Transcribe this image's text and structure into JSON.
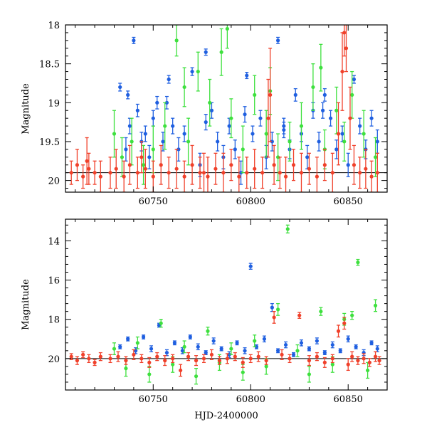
{
  "colors": {
    "blue": "#1f5fe0",
    "green": "#3ee03e",
    "red": "#f0402a",
    "axis": "#000000",
    "reference_line": "#000000"
  },
  "chart_data": [
    {
      "type": "scatter",
      "title": "",
      "xlabel": "",
      "ylabel": "Magnitude",
      "xlim": [
        60705,
        60870
      ],
      "ylim": [
        20.15,
        18.0
      ],
      "y_inverted": true,
      "grid": false,
      "legend": "none",
      "xticks": [
        60750,
        60800,
        60850
      ],
      "yticks": [
        18,
        18.5,
        19,
        19.5,
        20
      ],
      "ytick_labels": [
        "18",
        "18.5",
        "19",
        "19.5",
        "20"
      ],
      "reference_line_y": 19.9,
      "series": [
        {
          "color": "blue",
          "x": [
            60733,
            60736,
            60738,
            60740,
            60742,
            60744,
            60746,
            60748,
            60750,
            60752,
            60755,
            60758,
            60760,
            60763,
            60766,
            60770,
            60774,
            60777,
            60780,
            60783,
            60786,
            60789,
            60792,
            60795,
            60798,
            60801,
            60805,
            60808,
            60811,
            60814,
            60817,
            60820,
            60823,
            60826,
            60829,
            60832,
            60835,
            60838,
            60841,
            60844,
            60847,
            60850,
            60853,
            60856,
            60859,
            60862,
            60865,
            60737,
            60757,
            60777,
            60797,
            60817,
            60837
          ],
          "y": [
            18.8,
            19.6,
            19.3,
            18.2,
            19.1,
            19.5,
            19.4,
            19.7,
            19.2,
            19.0,
            19.5,
            18.7,
            19.3,
            19.6,
            19.4,
            18.6,
            19.8,
            18.35,
            19.1,
            19.5,
            19.7,
            19.3,
            19.6,
            19.9,
            18.65,
            19.4,
            19.2,
            19.7,
            19.5,
            18.2,
            19.3,
            19.6,
            18.9,
            19.4,
            19.7,
            19.1,
            19.5,
            18.9,
            19.2,
            19.6,
            19.4,
            19.8,
            18.7,
            19.3,
            19.6,
            19.2,
            19.5,
            18.9,
            19.0,
            19.25,
            19.15,
            19.35,
            19.1
          ],
          "yerr": [
            0.05,
            0.15,
            0.1,
            0.04,
            0.08,
            0.12,
            0.1,
            0.15,
            0.1,
            0.08,
            0.12,
            0.05,
            0.1,
            0.15,
            0.1,
            0.05,
            0.15,
            0.04,
            0.1,
            0.12,
            0.15,
            0.1,
            0.12,
            0.15,
            0.04,
            0.1,
            0.1,
            0.15,
            0.12,
            0.04,
            0.1,
            0.12,
            0.08,
            0.1,
            0.15,
            0.1,
            0.12,
            0.08,
            0.1,
            0.12,
            0.1,
            0.15,
            0.05,
            0.1,
            0.12,
            0.1,
            0.15,
            0.05,
            0.08,
            0.1,
            0.1,
            0.1,
            0.1
          ]
        },
        {
          "color": "green",
          "x": [
            60730,
            60734,
            60739,
            60745,
            60750,
            60756,
            60762,
            60768,
            60773,
            60779,
            60785,
            60790,
            60796,
            60802,
            60808,
            60814,
            60820,
            60826,
            60832,
            60838,
            60844,
            60848,
            60852,
            60858,
            60864,
            60766,
            60788,
            60810,
            60836
          ],
          "y": [
            19.4,
            19.7,
            19.5,
            19.8,
            19.6,
            19.3,
            18.2,
            19.5,
            18.6,
            19.0,
            18.35,
            19.2,
            19.6,
            18.9,
            19.4,
            19.7,
            19.5,
            19.3,
            18.8,
            19.6,
            19.1,
            19.5,
            18.9,
            19.4,
            19.7,
            18.8,
            18.05,
            18.85,
            18.55
          ],
          "yerr": [
            0.3,
            0.25,
            0.3,
            0.25,
            0.3,
            0.3,
            0.2,
            0.3,
            0.25,
            0.3,
            0.3,
            0.25,
            0.3,
            0.25,
            0.3,
            0.3,
            0.25,
            0.3,
            0.3,
            0.25,
            0.3,
            0.25,
            0.3,
            0.3,
            0.25,
            0.25,
            0.25,
            0.3,
            0.3
          ]
        },
        {
          "color": "red",
          "x": [
            60708,
            60711,
            60714,
            60717,
            60720,
            60723,
            60728,
            60731,
            60735,
            60738,
            60742,
            60746,
            60750,
            60754,
            60758,
            60762,
            60766,
            60770,
            60774,
            60778,
            60782,
            60786,
            60790,
            60794,
            60798,
            60802,
            60806,
            60809,
            60812,
            60815,
            60818,
            60822,
            60826,
            60830,
            60834,
            60838,
            60842,
            60845,
            60847,
            60849,
            60851,
            60853,
            60856,
            60859,
            60862,
            60865,
            60716,
            60744,
            60776,
            60810,
            60848
          ],
          "y": [
            19.9,
            19.8,
            19.95,
            19.85,
            19.9,
            19.95,
            19.9,
            19.85,
            19.95,
            19.8,
            19.9,
            19.85,
            19.95,
            19.8,
            19.9,
            19.85,
            19.95,
            19.8,
            19.9,
            19.95,
            19.85,
            19.9,
            19.8,
            19.95,
            19.9,
            19.85,
            19.9,
            19.2,
            19.8,
            19.9,
            19.95,
            19.8,
            19.9,
            19.85,
            19.95,
            19.8,
            19.9,
            19.4,
            18.6,
            18.3,
            19.2,
            19.8,
            19.9,
            19.85,
            19.95,
            19.9,
            19.75,
            19.7,
            19.9,
            18.9,
            18.1
          ],
          "yerr": [
            0.15,
            0.2,
            0.15,
            0.2,
            0.15,
            0.2,
            0.2,
            0.25,
            0.2,
            0.25,
            0.2,
            0.25,
            0.2,
            0.25,
            0.2,
            0.25,
            0.2,
            0.25,
            0.2,
            0.25,
            0.2,
            0.25,
            0.2,
            0.25,
            0.2,
            0.25,
            0.2,
            0.5,
            0.25,
            0.2,
            0.25,
            0.2,
            0.25,
            0.2,
            0.25,
            0.2,
            0.25,
            0.4,
            0.5,
            0.3,
            0.4,
            0.25,
            0.2,
            0.25,
            0.2,
            0.25,
            0.3,
            0.2,
            0.25,
            0.6,
            0.3
          ]
        }
      ]
    },
    {
      "type": "scatter",
      "title": "",
      "xlabel": "HJD-2400000",
      "ylabel": "Magnitude",
      "xlim": [
        60705,
        60870
      ],
      "ylim": [
        21.6,
        12.9
      ],
      "y_inverted": true,
      "grid": false,
      "legend": "none",
      "xticks": [
        60750,
        60800,
        60850
      ],
      "yticks": [
        14,
        16,
        18,
        20
      ],
      "ytick_labels": [
        "14",
        "16",
        "18",
        "20"
      ],
      "reference_line_y": 20.0,
      "series": [
        {
          "color": "blue",
          "x": [
            60733,
            60737,
            60741,
            60745,
            60749,
            60753,
            60757,
            60761,
            60765,
            60769,
            60773,
            60777,
            60781,
            60785,
            60789,
            60793,
            60797,
            60800,
            60803,
            60807,
            60811,
            60814,
            60818,
            60822,
            60826,
            60830,
            60834,
            60838,
            60842,
            60846,
            60850,
            60854,
            60858,
            60862,
            60865
          ],
          "y": [
            19.4,
            19.0,
            19.6,
            18.9,
            19.5,
            18.3,
            19.7,
            19.2,
            19.6,
            18.9,
            19.4,
            19.7,
            19.1,
            19.5,
            19.8,
            19.2,
            19.6,
            15.3,
            19.4,
            19.0,
            17.4,
            19.6,
            19.3,
            19.8,
            19.2,
            19.5,
            19.1,
            19.7,
            19.3,
            19.6,
            19.0,
            19.4,
            19.7,
            19.2,
            19.5
          ],
          "yerr": [
            0.1,
            0.1,
            0.15,
            0.1,
            0.15,
            0.1,
            0.15,
            0.1,
            0.15,
            0.1,
            0.15,
            0.1,
            0.15,
            0.1,
            0.15,
            0.1,
            0.15,
            0.15,
            0.1,
            0.15,
            0.2,
            0.1,
            0.15,
            0.1,
            0.15,
            0.1,
            0.15,
            0.1,
            0.15,
            0.1,
            0.15,
            0.1,
            0.15,
            0.1,
            0.15
          ]
        },
        {
          "color": "green",
          "x": [
            60730,
            60736,
            60742,
            60748,
            60754,
            60760,
            60766,
            60772,
            60778,
            60784,
            60790,
            60796,
            60802,
            60808,
            60814,
            60819,
            60824,
            60830,
            60836,
            60842,
            60848,
            60852,
            60855,
            60860,
            60864
          ],
          "y": [
            19.5,
            20.5,
            19.2,
            20.8,
            18.2,
            20.3,
            19.4,
            20.9,
            18.6,
            20.2,
            19.5,
            20.7,
            19.1,
            20.4,
            17.5,
            13.4,
            19.6,
            20.8,
            17.6,
            20.3,
            18.0,
            17.8,
            15.1,
            20.6,
            17.3
          ],
          "yerr": [
            0.3,
            0.4,
            0.3,
            0.4,
            0.2,
            0.4,
            0.3,
            0.4,
            0.2,
            0.4,
            0.3,
            0.4,
            0.3,
            0.4,
            0.3,
            0.2,
            0.3,
            0.4,
            0.2,
            0.4,
            0.3,
            0.2,
            0.15,
            0.4,
            0.3
          ]
        },
        {
          "color": "red",
          "x": [
            60708,
            60711,
            60714,
            60717,
            60720,
            60723,
            60728,
            60732,
            60736,
            60740,
            60744,
            60748,
            60752,
            60756,
            60760,
            60764,
            60768,
            60772,
            60776,
            60780,
            60784,
            60788,
            60792,
            60796,
            60800,
            60804,
            60808,
            60812,
            60816,
            60820,
            60825,
            60830,
            60834,
            60838,
            60842,
            60845,
            60848,
            60850,
            60852,
            60855,
            60858,
            60861,
            60864,
            60866
          ],
          "y": [
            19.9,
            20.1,
            19.8,
            20.0,
            20.2,
            19.9,
            20.0,
            19.9,
            20.1,
            19.8,
            20.0,
            20.2,
            19.9,
            20.1,
            20.0,
            20.6,
            19.9,
            20.1,
            20.0,
            19.8,
            20.1,
            20.0,
            19.9,
            20.2,
            20.0,
            19.9,
            20.1,
            17.9,
            19.8,
            20.0,
            17.8,
            20.1,
            19.9,
            20.2,
            20.0,
            18.6,
            18.2,
            20.3,
            19.9,
            20.1,
            20.0,
            20.2,
            19.9,
            20.1
          ],
          "yerr": [
            0.15,
            0.2,
            0.15,
            0.2,
            0.15,
            0.2,
            0.2,
            0.25,
            0.2,
            0.25,
            0.2,
            0.25,
            0.2,
            0.25,
            0.2,
            0.3,
            0.2,
            0.25,
            0.2,
            0.25,
            0.2,
            0.25,
            0.2,
            0.25,
            0.2,
            0.25,
            0.2,
            0.3,
            0.25,
            0.2,
            0.15,
            0.25,
            0.2,
            0.25,
            0.2,
            0.3,
            0.3,
            0.3,
            0.25,
            0.2,
            0.25,
            0.2,
            0.25,
            0.2
          ]
        }
      ]
    }
  ]
}
